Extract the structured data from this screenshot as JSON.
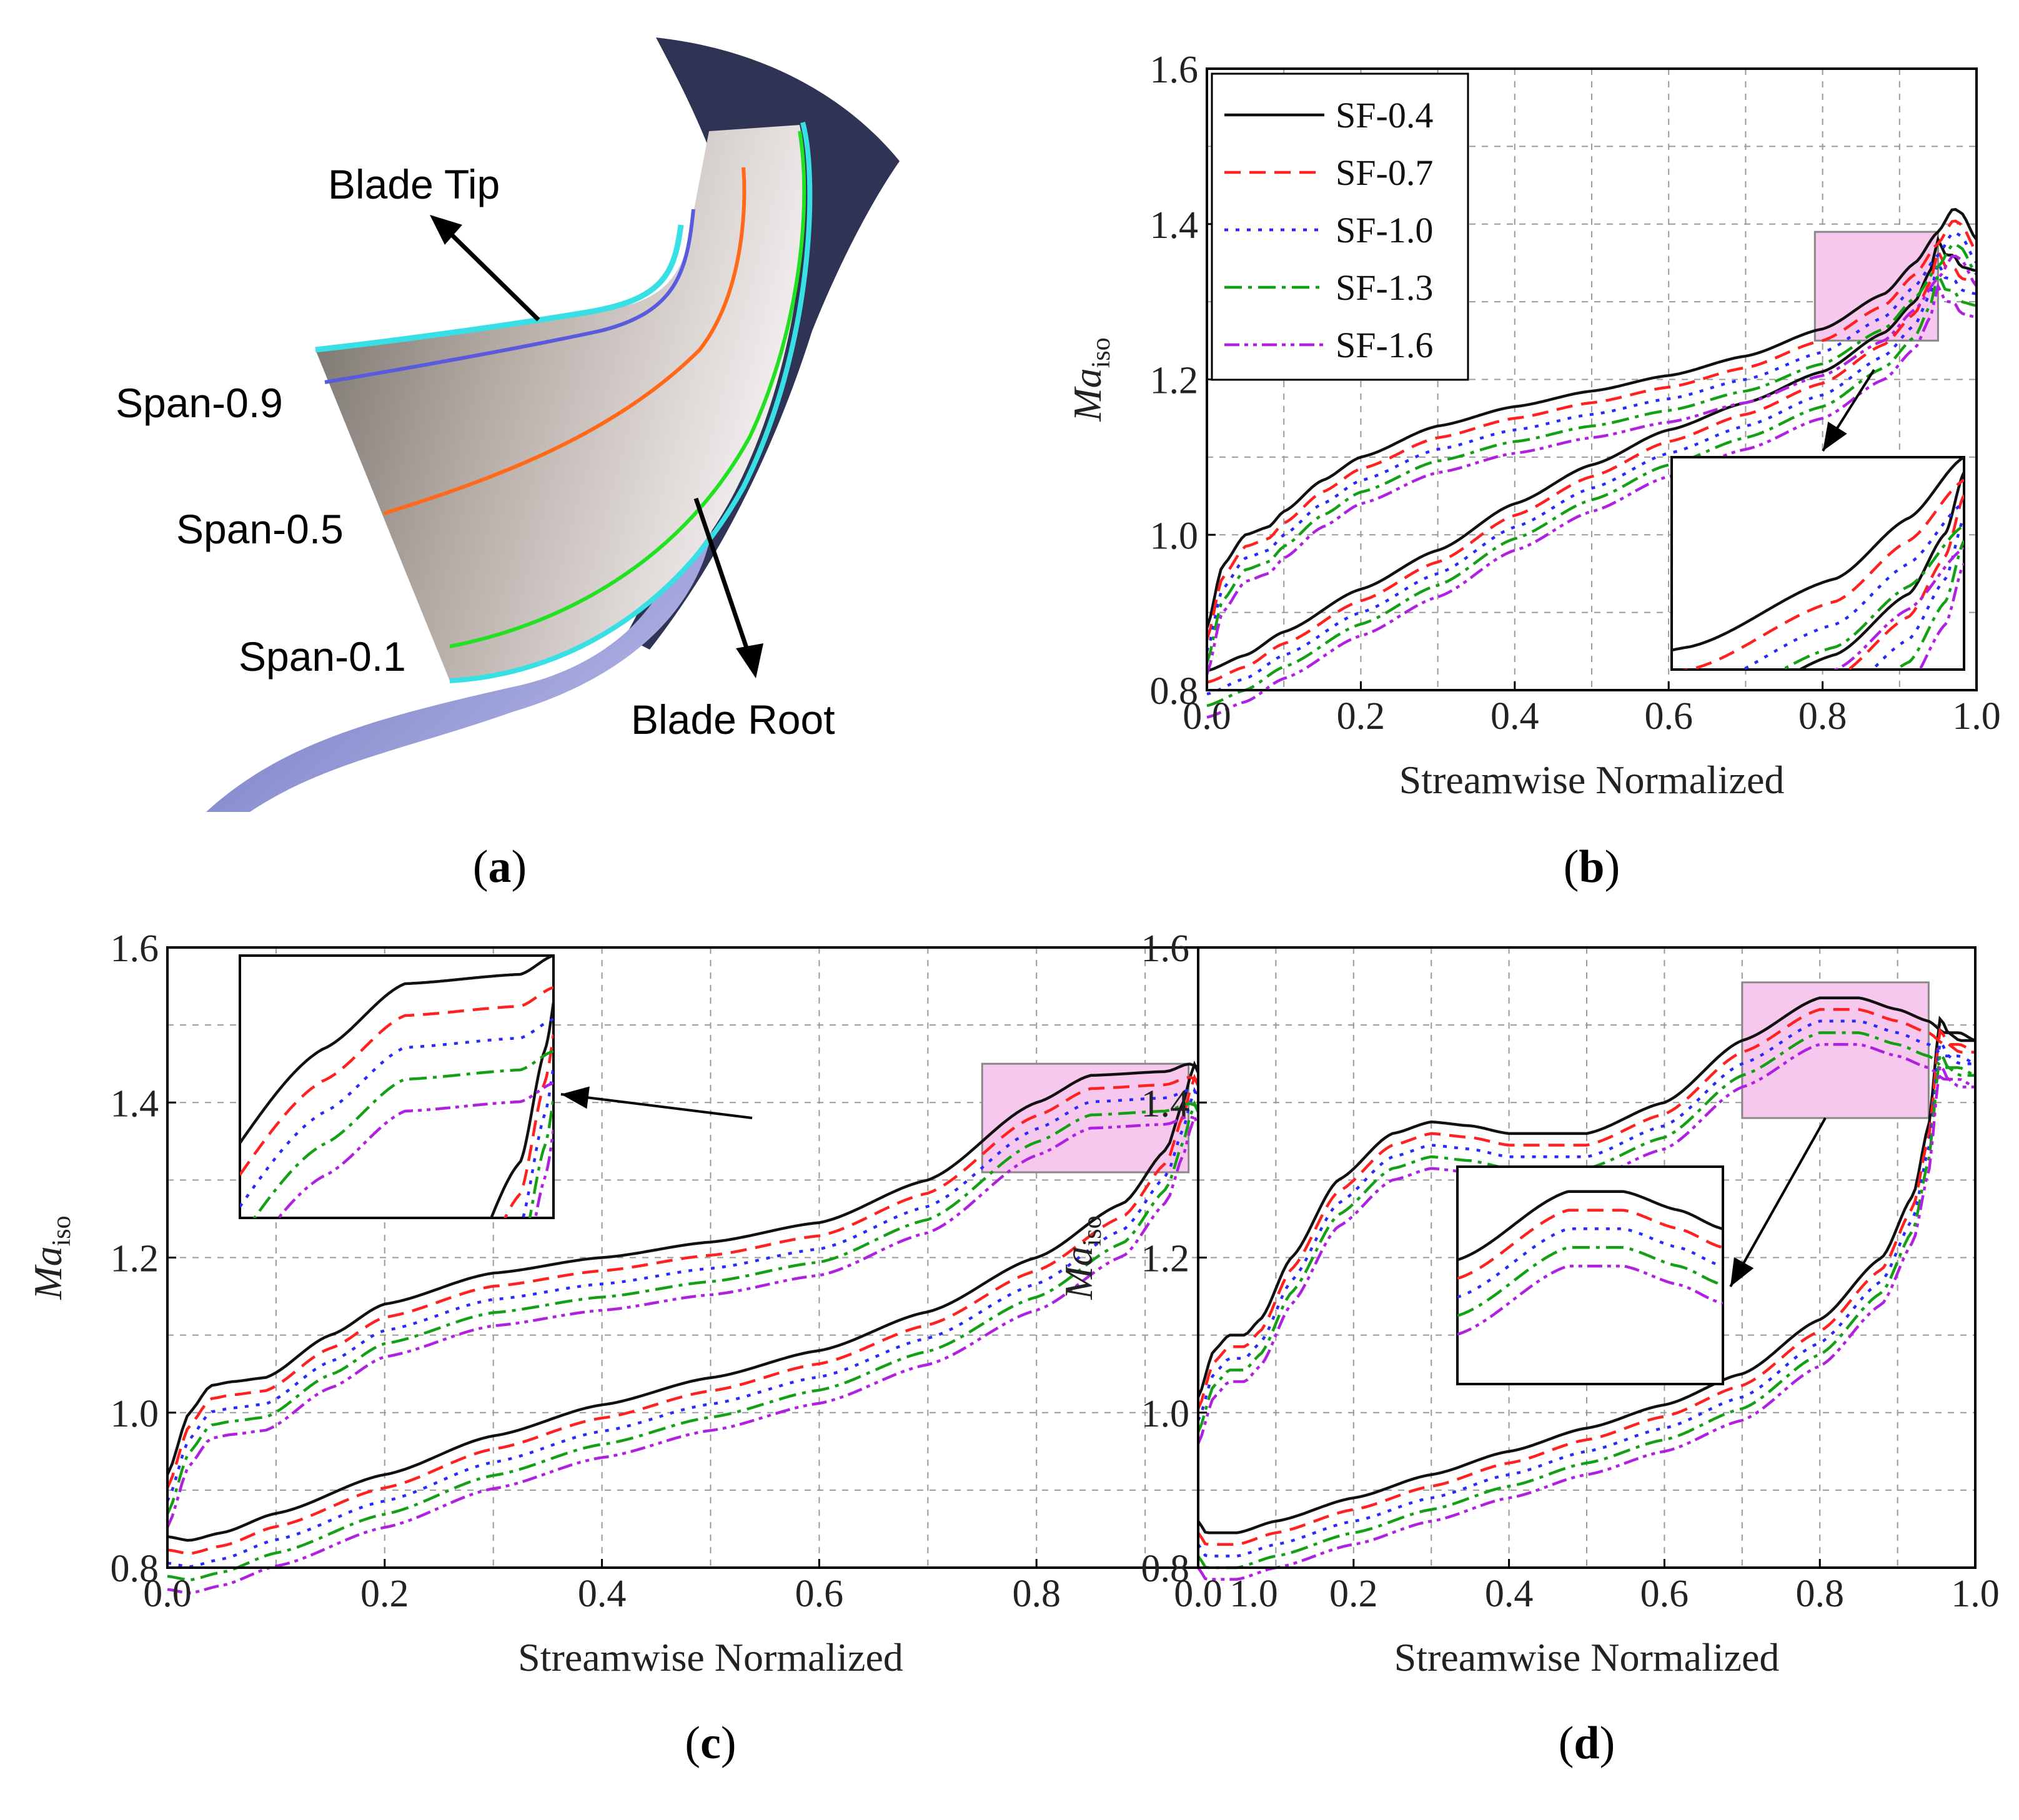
{
  "colors": {
    "SF-0.4": "#111111",
    "SF-0.7": "#ff2020",
    "SF-1.0": "#2a2aff",
    "SF-1.3": "#14a014",
    "SF-1.6": "#b020e0",
    "highlight": "#f7c8ee",
    "hub": "#7a7fc4",
    "shroud": "#2d3052",
    "blade": "#a89e98",
    "span09": "#5a5adc",
    "span05": "#ff6a1a",
    "span01": "#22e022",
    "edge": "#38e0e6"
  },
  "panel_a": {
    "caption": "a",
    "labels": {
      "blade_tip": "Blade Tip",
      "blade_root": "Blade Root",
      "span_09": "Span-0.9",
      "span_05": "Span-0.5",
      "span_01": "Span-0.1"
    }
  },
  "chart_data": [
    {
      "id": "b",
      "caption": "b",
      "type": "line",
      "xlabel": "Streamwise Normalized",
      "ylabel_main": "Ma",
      "ylabel_sub": "iso",
      "xlim": [
        0.0,
        1.0
      ],
      "ylim": [
        0.8,
        1.6
      ],
      "xticks": [
        "0.0",
        "0.2",
        "0.4",
        "0.6",
        "0.8",
        "1.0"
      ],
      "yticks": [
        "0.8",
        "1.0",
        "1.2",
        "1.4",
        "1.6"
      ],
      "legend": [
        "SF-0.4",
        "SF-0.7",
        "SF-1.0",
        "SF-1.3",
        "SF-1.6"
      ],
      "legend_position": "top-left",
      "grid": true,
      "offsets": [
        0.0,
        -0.015,
        -0.03,
        -0.045,
        -0.06
      ],
      "suction_side": [
        [
          0.0,
          0.88
        ],
        [
          0.02,
          0.96
        ],
        [
          0.05,
          1.0
        ],
        [
          0.08,
          1.01
        ],
        [
          0.1,
          1.03
        ],
        [
          0.15,
          1.07
        ],
        [
          0.2,
          1.1
        ],
        [
          0.3,
          1.14
        ],
        [
          0.4,
          1.165
        ],
        [
          0.5,
          1.185
        ],
        [
          0.6,
          1.205
        ],
        [
          0.7,
          1.23
        ],
        [
          0.8,
          1.265
        ],
        [
          0.88,
          1.31
        ],
        [
          0.92,
          1.35
        ],
        [
          0.95,
          1.39
        ],
        [
          0.97,
          1.42
        ],
        [
          0.98,
          1.415
        ],
        [
          1.0,
          1.38
        ]
      ],
      "pressure_side": [
        [
          0.0,
          0.825
        ],
        [
          0.05,
          0.845
        ],
        [
          0.1,
          0.875
        ],
        [
          0.2,
          0.93
        ],
        [
          0.3,
          0.98
        ],
        [
          0.4,
          1.04
        ],
        [
          0.5,
          1.09
        ],
        [
          0.6,
          1.135
        ],
        [
          0.7,
          1.17
        ],
        [
          0.8,
          1.21
        ],
        [
          0.88,
          1.26
        ],
        [
          0.92,
          1.3
        ],
        [
          0.94,
          1.34
        ],
        [
          0.95,
          1.38
        ],
        [
          0.96,
          1.36
        ],
        [
          0.97,
          1.36
        ],
        [
          0.98,
          1.345
        ],
        [
          1.0,
          1.34
        ]
      ],
      "highlight_x": [
        0.79,
        0.95
      ],
      "highlight_y": [
        1.25,
        1.39
      ]
    },
    {
      "id": "c",
      "caption": "c",
      "type": "line",
      "xlabel": "Streamwise Normalized",
      "ylabel_main": "Ma",
      "ylabel_sub": "iso",
      "xlim": [
        0.0,
        1.0
      ],
      "ylim": [
        0.8,
        1.6
      ],
      "xticks": [
        "0.0",
        "0.2",
        "0.4",
        "0.6",
        "0.8",
        "1.0"
      ],
      "yticks": [
        "0.8",
        "1.0",
        "1.2",
        "1.4",
        "1.6"
      ],
      "grid": true,
      "offsets": [
        0.0,
        -0.017,
        -0.034,
        -0.051,
        -0.068
      ],
      "suction_side": [
        [
          0.0,
          0.92
        ],
        [
          0.02,
          1.0
        ],
        [
          0.04,
          1.035
        ],
        [
          0.06,
          1.04
        ],
        [
          0.09,
          1.045
        ],
        [
          0.15,
          1.1
        ],
        [
          0.2,
          1.14
        ],
        [
          0.3,
          1.18
        ],
        [
          0.4,
          1.2
        ],
        [
          0.5,
          1.22
        ],
        [
          0.6,
          1.245
        ],
        [
          0.7,
          1.3
        ],
        [
          0.8,
          1.4
        ],
        [
          0.85,
          1.435
        ],
        [
          0.92,
          1.44
        ],
        [
          0.94,
          1.45
        ],
        [
          0.96,
          1.44
        ],
        [
          0.98,
          1.455
        ],
        [
          1.0,
          1.41
        ]
      ],
      "pressure_side": [
        [
          0.0,
          0.84
        ],
        [
          0.02,
          0.835
        ],
        [
          0.05,
          0.845
        ],
        [
          0.1,
          0.87
        ],
        [
          0.2,
          0.92
        ],
        [
          0.3,
          0.97
        ],
        [
          0.4,
          1.01
        ],
        [
          0.5,
          1.045
        ],
        [
          0.6,
          1.08
        ],
        [
          0.7,
          1.13
        ],
        [
          0.8,
          1.2
        ],
        [
          0.88,
          1.27
        ],
        [
          0.92,
          1.34
        ],
        [
          0.935,
          1.4
        ],
        [
          0.945,
          1.45
        ],
        [
          0.955,
          1.42
        ],
        [
          0.97,
          1.42
        ],
        [
          0.99,
          1.41
        ],
        [
          1.0,
          1.4
        ]
      ],
      "highlight_x": [
        0.75,
        0.94
      ],
      "highlight_y": [
        1.31,
        1.45
      ]
    },
    {
      "id": "d",
      "caption": "d",
      "type": "line",
      "xlabel": "Streamwise Normalized",
      "ylabel_main": "Ma",
      "ylabel_sub": "iso",
      "xlim": [
        0.0,
        1.0
      ],
      "ylim": [
        0.8,
        1.6
      ],
      "xticks": [
        "0.0",
        "0.2",
        "0.4",
        "0.6",
        "0.8",
        "1.0"
      ],
      "yticks": [
        "0.8",
        "1.0",
        "1.2",
        "1.4",
        "1.6"
      ],
      "grid": true,
      "offsets": [
        0.0,
        -0.015,
        -0.03,
        -0.045,
        -0.06
      ],
      "suction_side": [
        [
          0.0,
          1.02
        ],
        [
          0.02,
          1.08
        ],
        [
          0.04,
          1.1
        ],
        [
          0.06,
          1.1
        ],
        [
          0.08,
          1.12
        ],
        [
          0.12,
          1.2
        ],
        [
          0.18,
          1.3
        ],
        [
          0.25,
          1.36
        ],
        [
          0.3,
          1.375
        ],
        [
          0.35,
          1.37
        ],
        [
          0.4,
          1.36
        ],
        [
          0.5,
          1.36
        ],
        [
          0.6,
          1.4
        ],
        [
          0.7,
          1.48
        ],
        [
          0.8,
          1.535
        ],
        [
          0.85,
          1.535
        ],
        [
          0.9,
          1.52
        ],
        [
          0.94,
          1.505
        ],
        [
          0.96,
          1.49
        ],
        [
          0.98,
          1.49
        ],
        [
          1.0,
          1.48
        ]
      ],
      "pressure_side": [
        [
          0.0,
          0.86
        ],
        [
          0.01,
          0.845
        ],
        [
          0.05,
          0.845
        ],
        [
          0.1,
          0.86
        ],
        [
          0.2,
          0.89
        ],
        [
          0.3,
          0.92
        ],
        [
          0.4,
          0.95
        ],
        [
          0.5,
          0.98
        ],
        [
          0.6,
          1.01
        ],
        [
          0.7,
          1.05
        ],
        [
          0.8,
          1.12
        ],
        [
          0.88,
          1.2
        ],
        [
          0.92,
          1.28
        ],
        [
          0.94,
          1.37
        ],
        [
          0.955,
          1.51
        ],
        [
          0.965,
          1.49
        ],
        [
          0.98,
          1.48
        ],
        [
          1.0,
          1.48
        ]
      ],
      "highlight_x": [
        0.7,
        0.94
      ],
      "highlight_y": [
        1.38,
        1.555
      ]
    }
  ]
}
